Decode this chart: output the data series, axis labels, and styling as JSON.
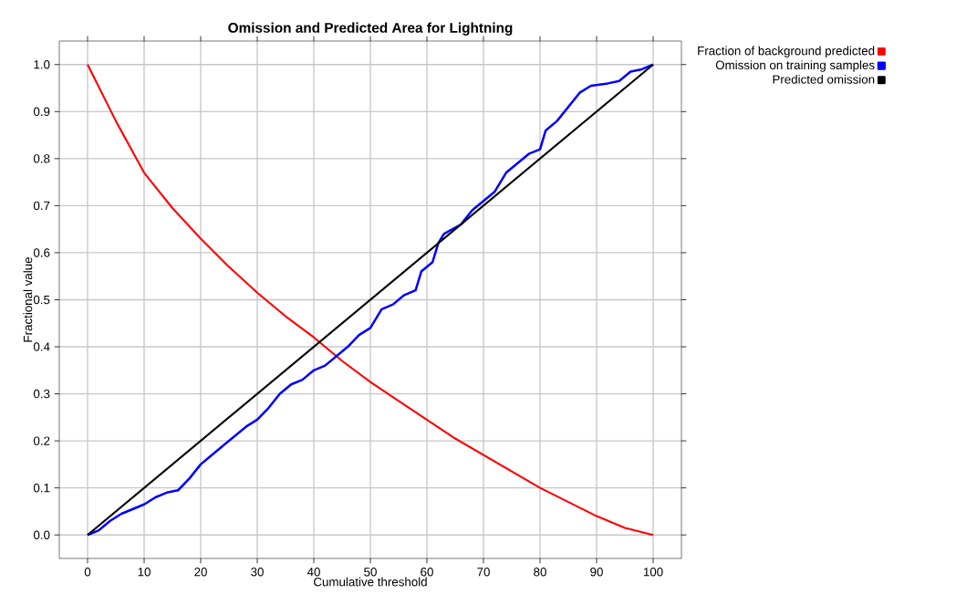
{
  "chart_data": {
    "type": "line",
    "title": "Omission and Predicted Area for Lightning",
    "xlabel": "Cumulative threshold",
    "ylabel": "Fractional value",
    "xlim": [
      -5,
      105
    ],
    "ylim": [
      -0.05,
      1.05
    ],
    "xticks": [
      0,
      10,
      20,
      30,
      40,
      50,
      60,
      70,
      80,
      90,
      100
    ],
    "yticks": [
      {
        "value": 0,
        "label": "0.0"
      },
      {
        "value": 0.1,
        "label": "0.1"
      },
      {
        "value": 0.2,
        "label": "0.2"
      },
      {
        "value": 0.3,
        "label": "0.3"
      },
      {
        "value": 0.4,
        "label": "0.4"
      },
      {
        "value": 0.5,
        "label": "0.5"
      },
      {
        "value": 0.6,
        "label": "0.6"
      },
      {
        "value": 0.7,
        "label": "0.7"
      },
      {
        "value": 0.8,
        "label": "0.8"
      },
      {
        "value": 0.9,
        "label": "0.9"
      },
      {
        "value": 1,
        "label": "1.0"
      }
    ],
    "grid": true,
    "legend": "top right",
    "marker": "none",
    "line_style": "solid",
    "series": [
      {
        "name": "Fraction of background predicted",
        "color": "#ff0000",
        "x": [
          0,
          5,
          10,
          15,
          20,
          25,
          30,
          35,
          40,
          45,
          50,
          55,
          60,
          65,
          70,
          75,
          80,
          85,
          90,
          95,
          100
        ],
        "values": [
          1,
          0.88,
          0.77,
          0.695,
          0.63,
          0.57,
          0.515,
          0.465,
          0.42,
          0.37,
          0.325,
          0.285,
          0.245,
          0.205,
          0.17,
          0.135,
          0.1,
          0.07,
          0.04,
          0.015,
          0
        ]
      },
      {
        "name": "Omission on training samples",
        "color": "#0000ff",
        "x": [
          0,
          2,
          4,
          6,
          8,
          10,
          12,
          14,
          16,
          18,
          20,
          22,
          24,
          26,
          28,
          30,
          32,
          34,
          36,
          38,
          40,
          42,
          44,
          46,
          48,
          50,
          52,
          54,
          56,
          58,
          59,
          61,
          62,
          63,
          66,
          68,
          70,
          72,
          74,
          76,
          78,
          80,
          81,
          83,
          85,
          87,
          89,
          92,
          94,
          96,
          98,
          100
        ],
        "values": [
          0,
          0.01,
          0.03,
          0.045,
          0.055,
          0.065,
          0.08,
          0.09,
          0.095,
          0.12,
          0.15,
          0.17,
          0.19,
          0.21,
          0.23,
          0.245,
          0.27,
          0.3,
          0.32,
          0.33,
          0.35,
          0.36,
          0.38,
          0.4,
          0.425,
          0.44,
          0.48,
          0.49,
          0.51,
          0.52,
          0.56,
          0.58,
          0.62,
          0.64,
          0.66,
          0.69,
          0.71,
          0.73,
          0.77,
          0.79,
          0.81,
          0.82,
          0.86,
          0.88,
          0.91,
          0.94,
          0.955,
          0.96,
          0.965,
          0.985,
          0.99,
          1
        ]
      },
      {
        "name": "Predicted omission",
        "color": "#000000",
        "x": [
          0,
          100
        ],
        "values": [
          0,
          1
        ]
      }
    ]
  }
}
